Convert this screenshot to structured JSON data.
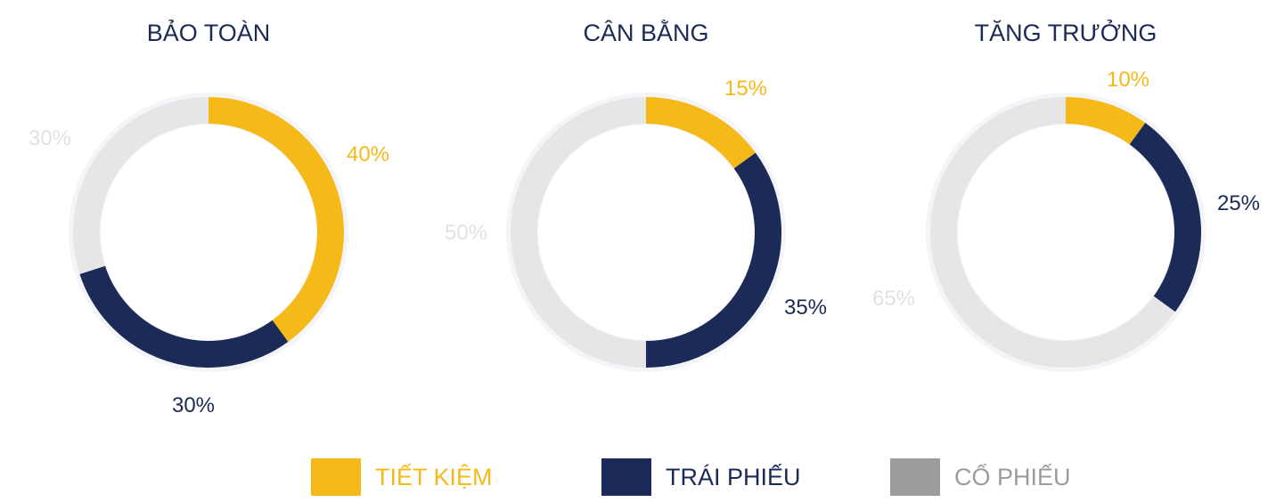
{
  "colors": {
    "savings": "#f5b91a",
    "bonds": "#1b2a57",
    "stocks_ring": "#e6e6e6",
    "stocks_label": "#e2e2e2",
    "stocks_legend": "#9c9c9c",
    "halo": "#f4f5f8"
  },
  "chart_data": [
    {
      "type": "pie",
      "title": "BẢO TOÀN",
      "categories": [
        "TIẾT KIỆM",
        "TRÁI PHIẾU",
        "CỔ PHIẾU"
      ],
      "values": [
        40,
        30,
        30
      ],
      "labels": [
        "40%",
        "30%",
        "30%"
      ]
    },
    {
      "type": "pie",
      "title": "CÂN BẰNG",
      "categories": [
        "TIẾT KIỆM",
        "TRÁI PHIẾU",
        "CỔ PHIẾU"
      ],
      "values": [
        15,
        35,
        50
      ],
      "labels": [
        "15%",
        "35%",
        "50%"
      ]
    },
    {
      "type": "pie",
      "title": "TĂNG TRƯỞNG",
      "categories": [
        "TIẾT KIỆM",
        "TRÁI PHIẾU",
        "CỔ PHIẾU"
      ],
      "values": [
        10,
        25,
        65
      ],
      "labels": [
        "10%",
        "25%",
        "65%"
      ]
    }
  ],
  "legend": [
    {
      "label": "TIẾT KIỆM",
      "key": "savings"
    },
    {
      "label": "TRÁI PHIẾU",
      "key": "bonds"
    },
    {
      "label": "CỔ PHIẾU",
      "key": "stocks"
    }
  ]
}
